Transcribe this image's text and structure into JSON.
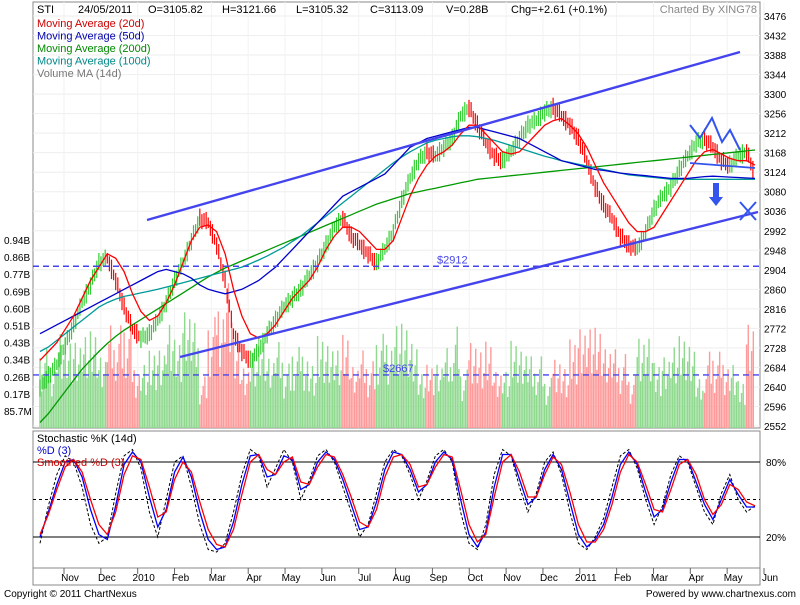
{
  "header": {
    "symbol": "STI",
    "date": "24/05/2011",
    "open": "O=3105.82",
    "high": "H=3121.66",
    "low": "L=3105.32",
    "close": "C=3113.09",
    "volume": "V=0.28B",
    "change": "Chg=+2.61 (+0.1%)",
    "credit": "Charted By XING78"
  },
  "footer": {
    "copyright": "Copyright © 2011 ChartNexus",
    "powered": "Powered by www.chartnexus.com"
  },
  "colors": {
    "price_up": "#33cc33",
    "price_down": "#ff0000",
    "ma20": "#ff0000",
    "ma50": "#0000cc",
    "ma200": "#009900",
    "ma100": "#009999",
    "volume_ma": "#808080",
    "trendline": "#4444ee",
    "stoch_k": "#000000",
    "stoch_d": "#0000ff",
    "stoch_smoothed": "#ff0000"
  },
  "chart_data": [
    {
      "type": "line",
      "panel": "price",
      "legend": [
        {
          "label": "Moving Average (20d)",
          "color": "#cc0000"
        },
        {
          "label": "Moving Average (50d)",
          "color": "#0000aa"
        },
        {
          "label": "Moving Average (200d)",
          "color": "#008800"
        },
        {
          "label": "Moving Average (100d)",
          "color": "#008888"
        },
        {
          "label": "Volume MA (14d)",
          "color": "#777777"
        }
      ],
      "legend_placement": "top-left",
      "y_ticks_right": [
        "3476",
        "3432",
        "3388",
        "3344",
        "3300",
        "3256",
        "3212",
        "3168",
        "3124",
        "3080",
        "3036",
        "2992",
        "2948",
        "2904",
        "2860",
        "2816",
        "2772",
        "2728",
        "2684",
        "2640",
        "2596",
        "2552"
      ],
      "ylim": [
        2552,
        3476
      ],
      "volume_ticks_left": [
        "0.94B",
        "0.86B",
        "0.77B",
        "0.69B",
        "0.60B",
        "0.51B",
        "0.43B",
        "0.34B",
        "0.26B",
        "0.17B",
        "85.7M"
      ],
      "x_ticks": [
        "Nov",
        "Dec",
        "2010",
        "Feb",
        "Mar",
        "Apr",
        "May",
        "Jun",
        "Jul",
        "Aug",
        "Sep",
        "Oct",
        "Nov",
        "Dec",
        "2011",
        "Feb",
        "Mar",
        "Apr",
        "May",
        "Jun"
      ],
      "close_series": [
        2640,
        2665,
        2690,
        2735,
        2780,
        2830,
        2870,
        2920,
        2930,
        2880,
        2820,
        2770,
        2750,
        2760,
        2790,
        2830,
        2880,
        2920,
        2970,
        3020,
        3010,
        2960,
        2880,
        2760,
        2720,
        2700,
        2720,
        2760,
        2790,
        2820,
        2840,
        2860,
        2890,
        2920,
        2960,
        3000,
        3020,
        2980,
        2960,
        2940,
        2920,
        2950,
        2990,
        3060,
        3110,
        3150,
        3170,
        3160,
        3180,
        3200,
        3250,
        3270,
        3230,
        3190,
        3160,
        3150,
        3170,
        3200,
        3230,
        3240,
        3260,
        3270,
        3250,
        3230,
        3200,
        3150,
        3090,
        3050,
        3020,
        2980,
        2960,
        2950,
        2990,
        3040,
        3070,
        3090,
        3130,
        3160,
        3190,
        3200,
        3180,
        3150,
        3140,
        3160,
        3170,
        3120
      ],
      "ma20": [
        2700,
        2720,
        2740,
        2770,
        2800,
        2840,
        2880,
        2910,
        2940,
        2930,
        2900,
        2850,
        2810,
        2790,
        2800,
        2830,
        2870,
        2920,
        2970,
        3000,
        3005,
        2990,
        2940,
        2860,
        2800,
        2760,
        2750,
        2760,
        2780,
        2810,
        2840,
        2860,
        2880,
        2910,
        2950,
        2980,
        3000,
        3000,
        2990,
        2970,
        2950,
        2950,
        2970,
        3020,
        3070,
        3110,
        3140,
        3160,
        3170,
        3185,
        3210,
        3230,
        3230,
        3210,
        3190,
        3170,
        3165,
        3170,
        3190,
        3210,
        3230,
        3240,
        3245,
        3230,
        3210,
        3180,
        3140,
        3100,
        3070,
        3040,
        3010,
        2990,
        2990,
        3000,
        3030,
        3060,
        3090,
        3120,
        3150,
        3170,
        3175,
        3165,
        3155,
        3150,
        3150,
        3140
      ],
      "ma50": [
        2760,
        2770,
        2780,
        2790,
        2800,
        2810,
        2820,
        2830,
        2840,
        2850,
        2860,
        2870,
        2880,
        2890,
        2900,
        2905,
        2900,
        2895,
        2885,
        2870,
        2860,
        2855,
        2850,
        2855,
        2860,
        2870,
        2880,
        2895,
        2910,
        2930,
        2950,
        2970,
        2990,
        3010,
        3030,
        3050,
        3070,
        3080,
        3090,
        3100,
        3110,
        3120,
        3140,
        3160,
        3180,
        3190,
        3200,
        3205,
        3210,
        3215,
        3220,
        3225,
        3225,
        3220,
        3215,
        3210,
        3205,
        3200,
        3190,
        3180,
        3170,
        3160,
        3150,
        3145,
        3140,
        3135,
        3130,
        3128,
        3125,
        3122,
        3120,
        3118,
        3116,
        3114,
        3112,
        3110,
        3110,
        3110,
        3112,
        3114,
        3115,
        3114,
        3113,
        3112,
        3111,
        3110
      ],
      "ma100": [
        2720,
        2730,
        2745,
        2760,
        2775,
        2790,
        2805,
        2820,
        2830,
        2838,
        2844,
        2848,
        2852,
        2856,
        2860,
        2865,
        2870,
        2875,
        2880,
        2885,
        2890,
        2895,
        2900,
        2905,
        2910,
        2918,
        2926,
        2935,
        2945,
        2955,
        2968,
        2980,
        2995,
        3010,
        3025,
        3040,
        3055,
        3070,
        3085,
        3100,
        3115,
        3130,
        3145,
        3158,
        3170,
        3180,
        3190,
        3196,
        3200,
        3204,
        3206,
        3206,
        3204,
        3200,
        3196,
        3190,
        3184,
        3178,
        3172,
        3166,
        3160,
        3155,
        3150,
        3146,
        3142,
        3138,
        3134,
        3130,
        3126,
        3122,
        3118,
        3116,
        3114,
        3112,
        3110,
        3108,
        3108,
        3108,
        3108,
        3108,
        3108,
        3108,
        3108,
        3108,
        3108,
        3108
      ],
      "ma200": [
        2560,
        2580,
        2605,
        2630,
        2655,
        2680,
        2700,
        2720,
        2738,
        2754,
        2768,
        2780,
        2792,
        2804,
        2816,
        2828,
        2840,
        2852,
        2864,
        2876,
        2888,
        2898,
        2908,
        2916,
        2924,
        2932,
        2940,
        2948,
        2956,
        2964,
        2972,
        2980,
        2988,
        2996,
        3004,
        3012,
        3020,
        3028,
        3036,
        3044,
        3052,
        3058,
        3064,
        3070,
        3076,
        3080,
        3084,
        3088,
        3092,
        3096,
        3100,
        3104,
        3108,
        3110,
        3112,
        3114,
        3116,
        3118,
        3120,
        3122,
        3124,
        3126,
        3128,
        3130,
        3132,
        3134,
        3136,
        3138,
        3140,
        3142,
        3144,
        3146,
        3148,
        3150,
        3152,
        3154,
        3156,
        3158,
        3160,
        3162,
        3164,
        3166,
        3168,
        3170,
        3172,
        3174
      ],
      "annotations": [
        {
          "label": "$2912",
          "value": 2912
        },
        {
          "label": "$2667",
          "value": 2667
        }
      ]
    },
    {
      "type": "line",
      "panel": "stochastic",
      "legend": [
        {
          "label": "Stochastic %K (14d)",
          "color": "#000000"
        },
        {
          "label": "%D (3)",
          "color": "#0000cc"
        },
        {
          "label": "Smoothed %D (3)",
          "color": "#cc0000"
        }
      ],
      "y_ticks_right": [
        "80%",
        "20%"
      ],
      "ylim": [
        0,
        100
      ],
      "k": [
        15,
        45,
        70,
        85,
        80,
        60,
        30,
        15,
        20,
        55,
        85,
        90,
        75,
        40,
        20,
        50,
        80,
        85,
        60,
        30,
        10,
        8,
        15,
        40,
        70,
        90,
        85,
        60,
        75,
        90,
        80,
        50,
        65,
        85,
        90,
        80,
        60,
        40,
        20,
        30,
        55,
        80,
        90,
        85,
        70,
        50,
        65,
        85,
        90,
        80,
        40,
        15,
        10,
        30,
        70,
        90,
        85,
        60,
        40,
        55,
        80,
        88,
        70,
        40,
        15,
        10,
        20,
        35,
        60,
        85,
        90,
        75,
        50,
        30,
        45,
        70,
        85,
        80,
        60,
        40,
        30,
        55,
        70,
        50,
        40,
        45
      ],
      "d": [
        20,
        40,
        62,
        80,
        82,
        68,
        42,
        22,
        18,
        45,
        78,
        88,
        80,
        52,
        28,
        42,
        72,
        84,
        68,
        40,
        18,
        10,
        12,
        32,
        62,
        85,
        86,
        68,
        70,
        85,
        82,
        58,
        62,
        80,
        88,
        82,
        66,
        46,
        26,
        28,
        48,
        74,
        88,
        86,
        74,
        56,
        62,
        80,
        88,
        82,
        50,
        22,
        12,
        24,
        60,
        86,
        86,
        66,
        46,
        52,
        74,
        86,
        74,
        48,
        22,
        12,
        18,
        30,
        52,
        78,
        88,
        78,
        56,
        36,
        42,
        64,
        82,
        82,
        64,
        46,
        34,
        50,
        66,
        54,
        44,
        44
      ],
      "smoothed_d": [
        22,
        38,
        58,
        76,
        82,
        72,
        50,
        30,
        22,
        40,
        70,
        85,
        82,
        60,
        36,
        40,
        66,
        80,
        72,
        48,
        26,
        14,
        12,
        26,
        54,
        80,
        86,
        74,
        70,
        80,
        84,
        64,
        62,
        76,
        86,
        84,
        70,
        52,
        32,
        28,
        42,
        68,
        84,
        86,
        78,
        60,
        62,
        76,
        86,
        84,
        58,
        30,
        16,
        22,
        52,
        80,
        86,
        72,
        52,
        52,
        70,
        84,
        78,
        56,
        30,
        16,
        16,
        26,
        46,
        72,
        86,
        80,
        62,
        42,
        40,
        58,
        78,
        82,
        70,
        50,
        38,
        46,
        62,
        58,
        48,
        45
      ]
    }
  ]
}
